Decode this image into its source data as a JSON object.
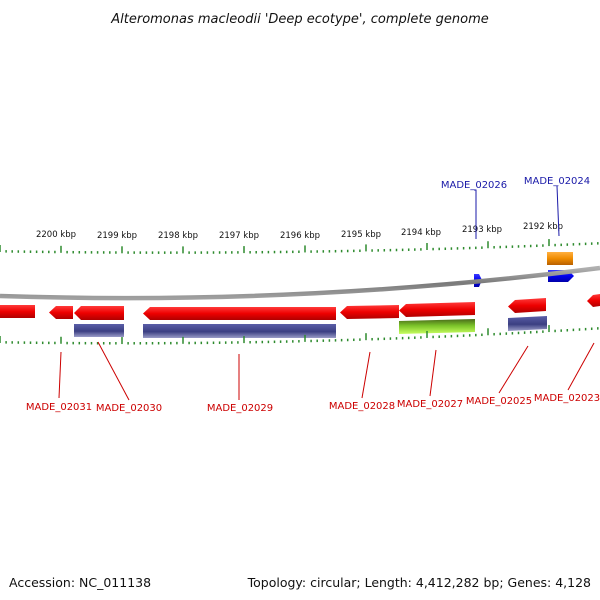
{
  "header": {
    "title": "Alteromonas macleodii 'Deep ecotype', complete genome"
  },
  "footer": {
    "accession": "Accession: NC_011138",
    "topology": "Topology: circular; Length: 4,412,282 bp; Genes: 4,128"
  },
  "ruler": {
    "ticks": [
      "2200 kbp",
      "2199 kbp",
      "2198 kbp",
      "2197 kbp",
      "2196 kbp",
      "2195 kbp",
      "2194 kbp",
      "2193 kbp",
      "2192 kbp"
    ]
  },
  "genes": {
    "labels": [
      "MADE_02031",
      "MADE_02030",
      "MADE_02029",
      "MADE_02028",
      "MADE_02027",
      "MADE_02025",
      "MADE_02023",
      "MADE_02026",
      "MADE_02024"
    ]
  },
  "colors": {
    "forward_cds": "#0000ee",
    "reverse_cds": "#ee0000",
    "protein_band": "#3b3f82",
    "green_band": "#8ee02a",
    "orange_band": "#f08c00",
    "backbone": "#888888",
    "tick": "#2e8b2e",
    "label_red": "#cc0000",
    "label_blue": "#1a1aa8"
  }
}
